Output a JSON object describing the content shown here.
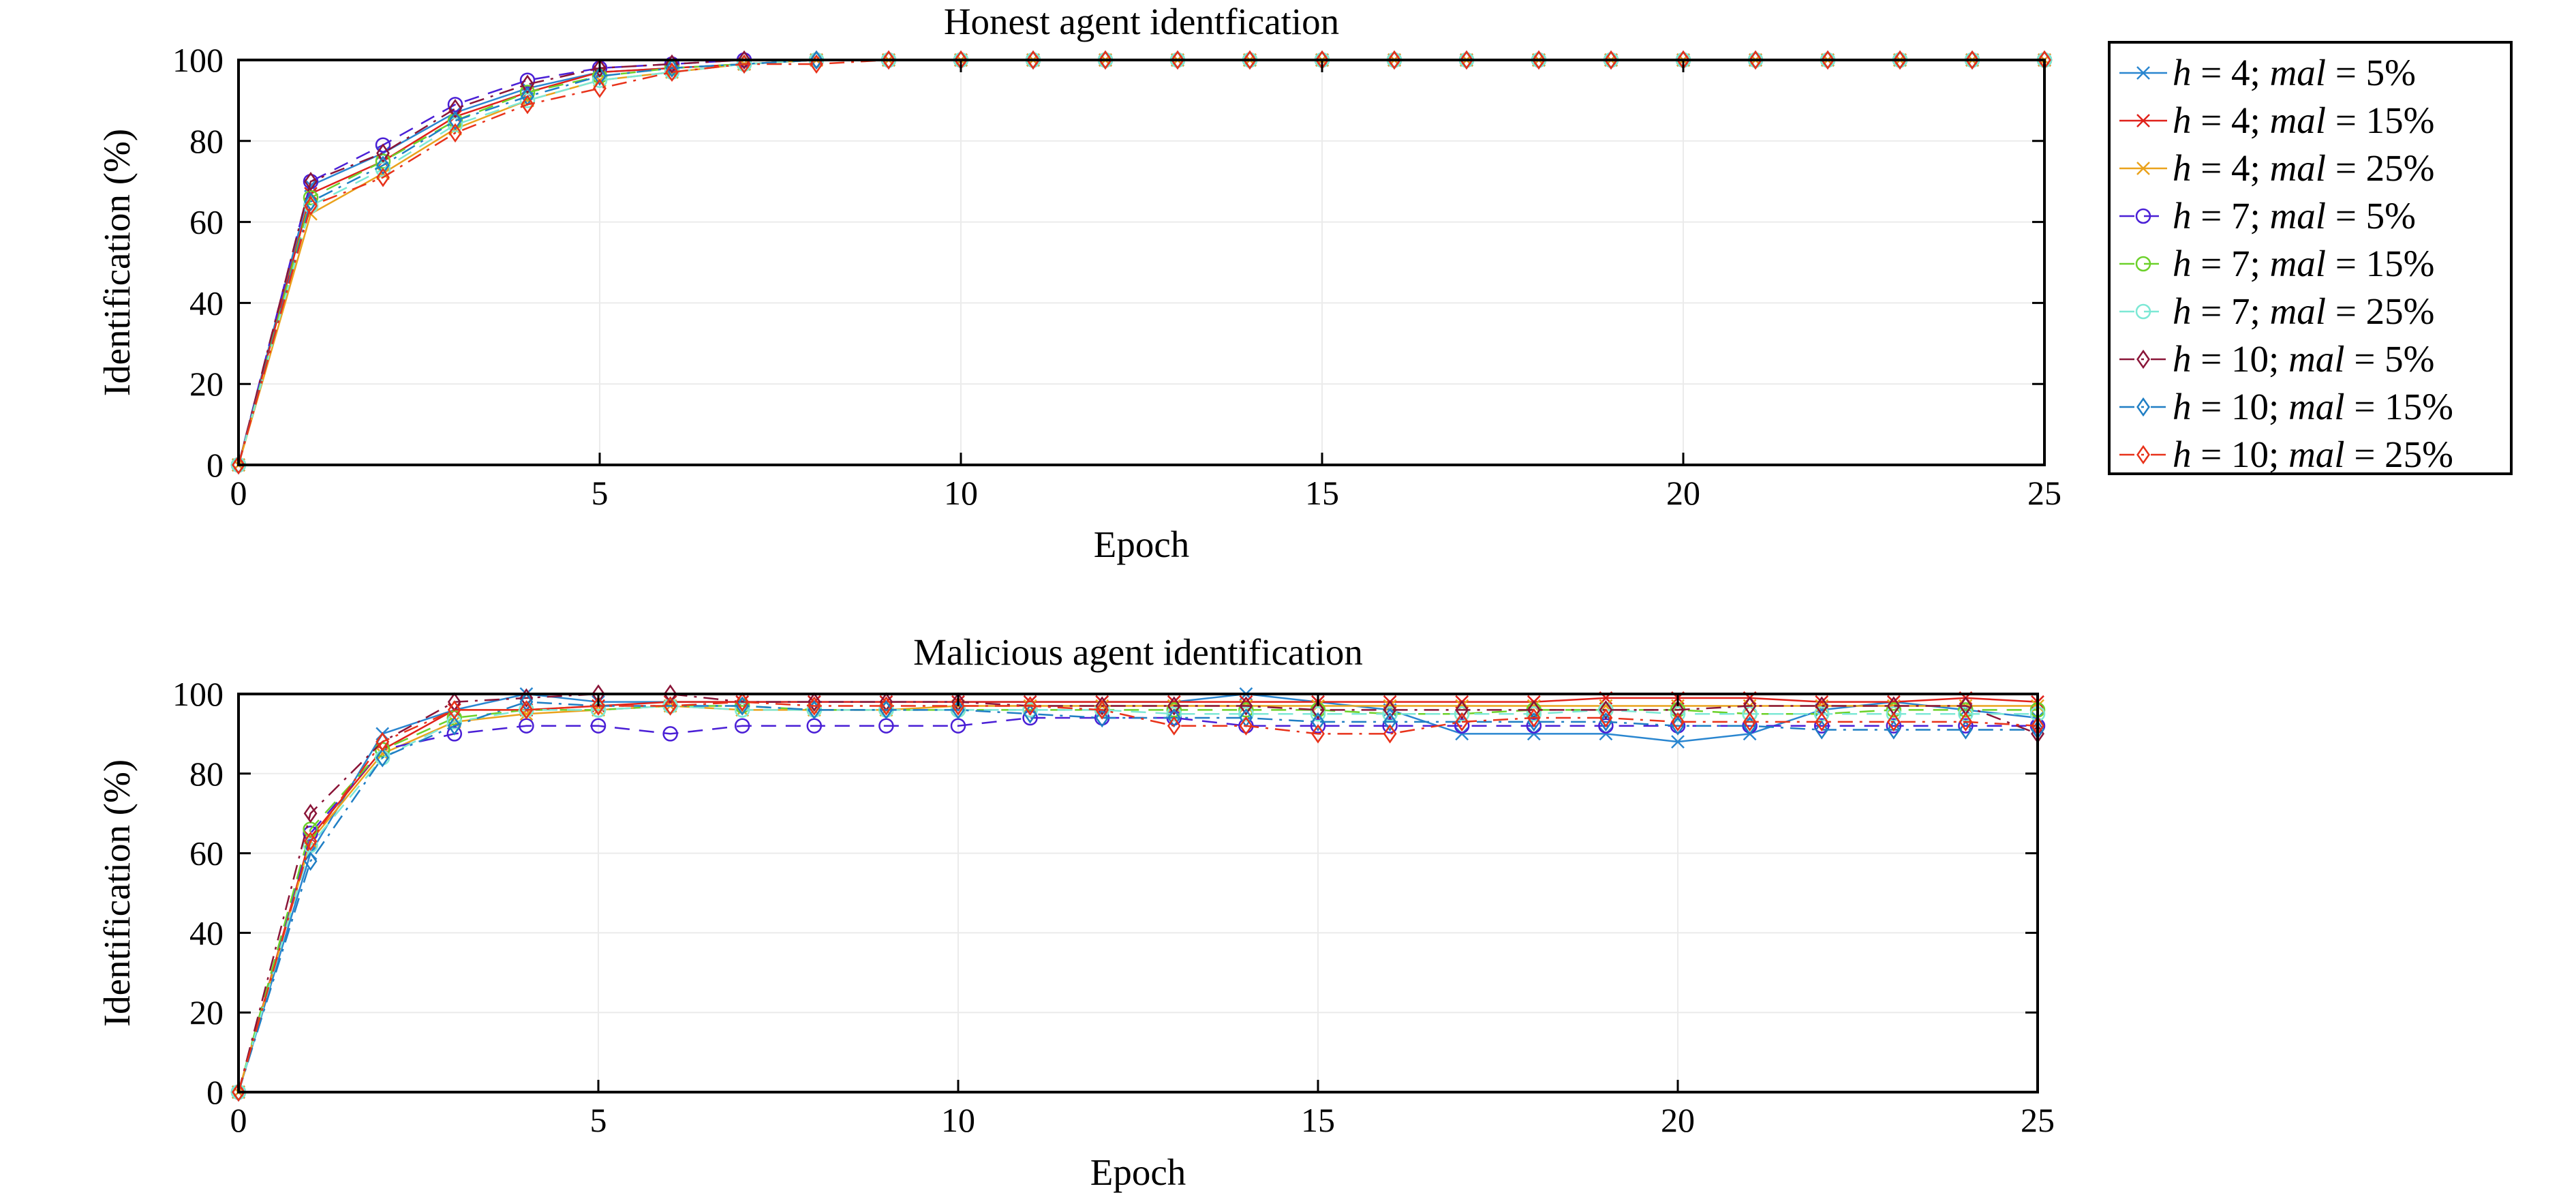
{
  "legend": {
    "items": [
      {
        "h": "4",
        "mal": "5%",
        "color": "#2a86d0",
        "marker": "x",
        "dash": "solid"
      },
      {
        "h": "4",
        "mal": "15%",
        "color": "#e0211a",
        "marker": "x",
        "dash": "solid"
      },
      {
        "h": "4",
        "mal": "25%",
        "color": "#eaa21c",
        "marker": "x",
        "dash": "solid"
      },
      {
        "h": "7",
        "mal": "5%",
        "color": "#4a1fd6",
        "marker": "circle",
        "dash": "dashed"
      },
      {
        "h": "7",
        "mal": "15%",
        "color": "#6cd12a",
        "marker": "circle",
        "dash": "dashed"
      },
      {
        "h": "7",
        "mal": "25%",
        "color": "#7de8d5",
        "marker": "circle",
        "dash": "dashed"
      },
      {
        "h": "10",
        "mal": "5%",
        "color": "#8a1538",
        "marker": "diamond",
        "dash": "dashdot"
      },
      {
        "h": "10",
        "mal": "15%",
        "color": "#1f7ec4",
        "marker": "diamond",
        "dash": "dashdot"
      },
      {
        "h": "10",
        "mal": "25%",
        "color": "#e8321a",
        "marker": "diamond",
        "dash": "dashdot"
      }
    ]
  },
  "chart_data": [
    {
      "type": "line",
      "title": "Honest agent identfication",
      "xlabel": "Epoch",
      "ylabel": "Identification (%)",
      "xlim": [
        0,
        25
      ],
      "ylim": [
        0,
        100
      ],
      "xticks": [
        0,
        5,
        10,
        15,
        20,
        25
      ],
      "yticks": [
        0,
        20,
        40,
        60,
        80,
        100
      ],
      "grid": true,
      "legend_position": "outside-right",
      "x": [
        0,
        1,
        2,
        3,
        4,
        5,
        6,
        7,
        8,
        9,
        10,
        11,
        12,
        13,
        14,
        15,
        16,
        17,
        18,
        19,
        20,
        21,
        22,
        23,
        24,
        25
      ],
      "series": [
        {
          "name": "h = 4; mal = 5%",
          "values": [
            0,
            69,
            77,
            87,
            93,
            97,
            98,
            99,
            100,
            100,
            100,
            100,
            100,
            100,
            100,
            100,
            100,
            100,
            100,
            100,
            100,
            100,
            100,
            100,
            100,
            100
          ]
        },
        {
          "name": "h = 4; mal = 15%",
          "values": [
            0,
            67,
            75,
            86,
            92,
            97,
            98,
            99,
            100,
            100,
            100,
            100,
            100,
            100,
            100,
            100,
            100,
            100,
            100,
            100,
            100,
            100,
            100,
            100,
            100,
            100
          ]
        },
        {
          "name": "h = 4; mal = 25%",
          "values": [
            0,
            62,
            72,
            83,
            90,
            95,
            97,
            99,
            100,
            100,
            100,
            100,
            100,
            100,
            100,
            100,
            100,
            100,
            100,
            100,
            100,
            100,
            100,
            100,
            100,
            100
          ]
        },
        {
          "name": "h = 7; mal = 5%",
          "values": [
            0,
            70,
            79,
            89,
            95,
            98,
            99,
            100,
            100,
            100,
            100,
            100,
            100,
            100,
            100,
            100,
            100,
            100,
            100,
            100,
            100,
            100,
            100,
            100,
            100,
            100
          ]
        },
        {
          "name": "h = 7; mal = 15%",
          "values": [
            0,
            66,
            75,
            85,
            92,
            96,
            98,
            99,
            100,
            100,
            100,
            100,
            100,
            100,
            100,
            100,
            100,
            100,
            100,
            100,
            100,
            100,
            100,
            100,
            100,
            100
          ]
        },
        {
          "name": "h = 7; mal = 25%",
          "values": [
            0,
            64,
            73,
            84,
            90,
            95,
            97,
            99,
            100,
            100,
            100,
            100,
            100,
            100,
            100,
            100,
            100,
            100,
            100,
            100,
            100,
            100,
            100,
            100,
            100,
            100
          ]
        },
        {
          "name": "h = 10; mal = 5%",
          "values": [
            0,
            70,
            77,
            88,
            94,
            98,
            99,
            100,
            100,
            100,
            100,
            100,
            100,
            100,
            100,
            100,
            100,
            100,
            100,
            100,
            100,
            100,
            100,
            100,
            100,
            100
          ]
        },
        {
          "name": "h = 10; mal = 15%",
          "values": [
            0,
            65,
            74,
            85,
            91,
            96,
            98,
            99,
            100,
            100,
            100,
            100,
            100,
            100,
            100,
            100,
            100,
            100,
            100,
            100,
            100,
            100,
            100,
            100,
            100,
            100
          ]
        },
        {
          "name": "h = 10; mal = 25%",
          "values": [
            0,
            64,
            71,
            82,
            89,
            93,
            97,
            99,
            99,
            100,
            100,
            100,
            100,
            100,
            100,
            100,
            100,
            100,
            100,
            100,
            100,
            100,
            100,
            100,
            100,
            100
          ]
        }
      ]
    },
    {
      "type": "line",
      "title": "Malicious agent identification",
      "xlabel": "Epoch",
      "ylabel": "Identification (%)",
      "xlim": [
        0,
        25
      ],
      "ylim": [
        0,
        100
      ],
      "xticks": [
        0,
        5,
        10,
        15,
        20,
        25
      ],
      "yticks": [
        0,
        20,
        40,
        60,
        80,
        100
      ],
      "grid": true,
      "x": [
        0,
        1,
        2,
        3,
        4,
        5,
        6,
        7,
        8,
        9,
        10,
        11,
        12,
        13,
        14,
        15,
        16,
        17,
        18,
        19,
        20,
        21,
        22,
        23,
        24,
        25
      ],
      "series": [
        {
          "name": "h = 4; mal = 5%",
          "values": [
            0,
            60,
            90,
            96,
            100,
            98,
            98,
            98,
            98,
            98,
            98,
            98,
            98,
            98,
            100,
            98,
            96,
            90,
            90,
            90,
            88,
            90,
            96,
            98,
            96,
            94
          ]
        },
        {
          "name": "h = 4; mal = 15%",
          "values": [
            0,
            64,
            86,
            96,
            96,
            97,
            98,
            98,
            98,
            98,
            98,
            98,
            98,
            98,
            98,
            98,
            98,
            98,
            98,
            99,
            99,
            99,
            98,
            98,
            99,
            98
          ]
        },
        {
          "name": "h = 4; mal = 25%",
          "values": [
            0,
            63,
            85,
            93,
            95,
            96,
            97,
            96,
            96,
            96,
            97,
            97,
            97,
            97,
            97,
            97,
            97,
            97,
            97,
            97,
            97,
            97,
            97,
            97,
            97,
            97
          ]
        },
        {
          "name": "h = 7; mal = 5%",
          "values": [
            0,
            65,
            86,
            90,
            92,
            92,
            90,
            92,
            92,
            92,
            92,
            94,
            94,
            94,
            92,
            92,
            92,
            92,
            92,
            92,
            92,
            92,
            92,
            92,
            92,
            92
          ]
        },
        {
          "name": "h = 7; mal = 15%",
          "values": [
            0,
            66,
            86,
            94,
            96,
            96,
            97,
            97,
            96,
            96,
            96,
            96,
            96,
            96,
            96,
            96,
            95,
            95,
            96,
            96,
            96,
            95,
            95,
            96,
            96,
            96
          ]
        },
        {
          "name": "h = 7; mal = 25%",
          "values": [
            0,
            62,
            84,
            93,
            96,
            96,
            97,
            96,
            96,
            96,
            96,
            96,
            96,
            95,
            95,
            95,
            95,
            95,
            95,
            96,
            95,
            95,
            95,
            95,
            95,
            95
          ]
        },
        {
          "name": "h = 10; mal = 5%",
          "values": [
            0,
            70,
            88,
            98,
            99,
            100,
            100,
            98,
            98,
            98,
            98,
            97,
            97,
            97,
            97,
            96,
            96,
            96,
            96,
            96,
            96,
            97,
            97,
            97,
            97,
            90
          ]
        },
        {
          "name": "h = 10; mal = 15%",
          "values": [
            0,
            58,
            84,
            92,
            98,
            97,
            97,
            97,
            96,
            96,
            96,
            95,
            94,
            94,
            94,
            93,
            93,
            93,
            93,
            93,
            92,
            92,
            91,
            91,
            91,
            91
          ]
        },
        {
          "name": "h = 10; mal = 25%",
          "values": [
            0,
            63,
            88,
            96,
            96,
            97,
            97,
            98,
            97,
            97,
            97,
            97,
            96,
            92,
            92,
            90,
            90,
            93,
            94,
            94,
            93,
            93,
            93,
            93,
            93,
            92
          ]
        }
      ]
    }
  ]
}
